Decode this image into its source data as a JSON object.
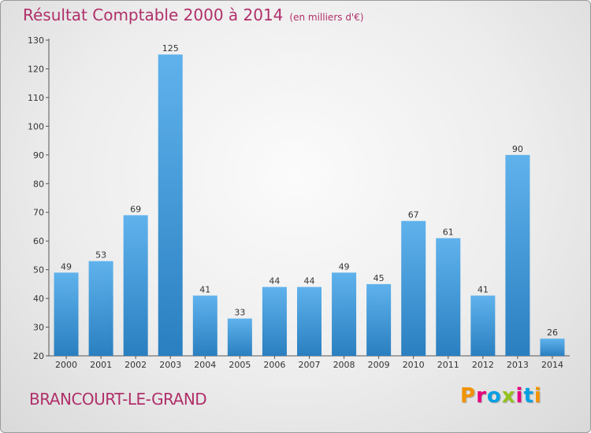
{
  "chart_data": {
    "type": "bar",
    "title": "Résultat Comptable 2000 à 2014",
    "subtitle": "(en milliers d'€)",
    "categories": [
      "2000",
      "2001",
      "2002",
      "2003",
      "2004",
      "2005",
      "2006",
      "2007",
      "2008",
      "2009",
      "2010",
      "2011",
      "2012",
      "2013",
      "2014"
    ],
    "values": [
      49,
      53,
      69,
      125,
      41,
      33,
      44,
      44,
      49,
      45,
      67,
      61,
      41,
      90,
      26
    ],
    "ylim": [
      20,
      130
    ],
    "yticks": [
      20,
      30,
      40,
      50,
      60,
      70,
      80,
      90,
      100,
      110,
      120,
      130
    ],
    "xlabel": "",
    "ylabel": "",
    "grid": false
  },
  "footer": {
    "city": "BRANCOURT-LE-GRAND",
    "brand": "Proxiti",
    "brand_colors": [
      "#f39200",
      "#e6007e",
      "#009fe3",
      "#95c11f",
      "#e6007e",
      "#009fe3",
      "#f39200"
    ]
  },
  "colors": {
    "title": "#b0306a",
    "bar_light": "#5fb2ec",
    "bar_dark": "#2a7fc0",
    "axis": "#555555"
  }
}
